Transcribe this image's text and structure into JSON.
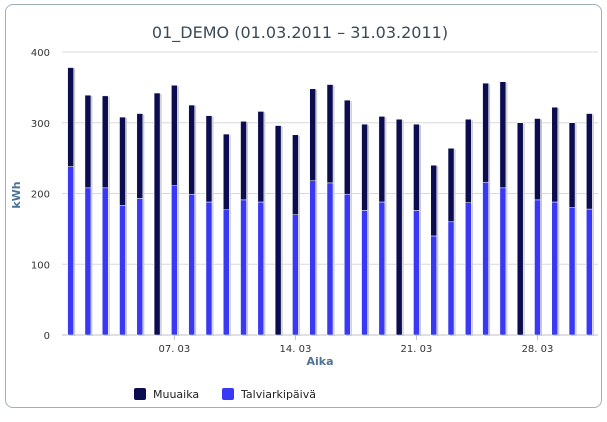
{
  "chart_data": {
    "type": "bar",
    "stacked": true,
    "title": "01_DEMO (01.03.2011 – 31.03.2011)",
    "xlabel": "Aika",
    "ylabel": "kWh",
    "ylim": [
      0,
      400
    ],
    "yticks": [
      0,
      100,
      200,
      300,
      400
    ],
    "grid": true,
    "legend_position": "bottom-left",
    "days": 31,
    "x_tick_labels": [
      {
        "day": 7,
        "label": "07. 03"
      },
      {
        "day": 14,
        "label": "14. 03"
      },
      {
        "day": 21,
        "label": "21. 03"
      },
      {
        "day": 28,
        "label": "28. 03"
      }
    ],
    "series": [
      {
        "name": "Talviarkipäivä",
        "color": "#3838f5",
        "values": [
          238,
          208,
          208,
          183,
          193,
          0,
          211,
          199,
          188,
          177,
          191,
          188,
          0,
          170,
          218,
          215,
          199,
          176,
          188,
          0,
          176,
          140,
          160,
          187,
          216,
          208,
          0,
          191,
          188,
          180,
          178
        ]
      },
      {
        "name": "Muuaika",
        "color": "#0c0c50",
        "values": [
          140,
          131,
          130,
          125,
          120,
          342,
          142,
          126,
          122,
          107,
          111,
          128,
          296,
          113,
          130,
          139,
          133,
          122,
          121,
          305,
          122,
          100,
          104,
          118,
          140,
          150,
          300,
          115,
          134,
          120,
          135
        ]
      }
    ]
  }
}
